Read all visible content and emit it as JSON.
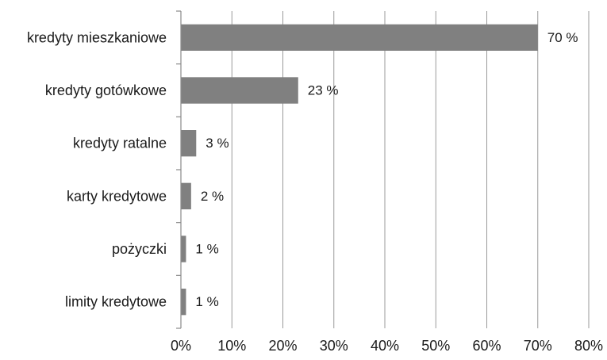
{
  "chart_data": {
    "type": "bar",
    "orientation": "horizontal",
    "categories": [
      "kredyty mieszkaniowe",
      "kredyty gotówkowe",
      "kredyty ratalne",
      "karty kredytowe",
      "pożyczki",
      "limity kredytowe"
    ],
    "values": [
      70,
      23,
      3,
      2,
      1,
      1
    ],
    "data_labels": [
      "70 %",
      "23 %",
      "3 %",
      "2 %",
      "1 %",
      "1 %"
    ],
    "xticks": [
      0,
      10,
      20,
      30,
      40,
      50,
      60,
      70,
      80
    ],
    "xtick_labels": [
      "0%",
      "10%",
      "20%",
      "30%",
      "40%",
      "50%",
      "60%",
      "70%",
      "80%"
    ],
    "xlim": [
      0,
      80
    ],
    "grid": "vertical",
    "title": "",
    "xlabel": "",
    "ylabel": "",
    "colors": {
      "bar": "#808080",
      "grid": "#9a9a9a",
      "axis": "#8a8a8a",
      "text": "#1a1a1a"
    }
  }
}
